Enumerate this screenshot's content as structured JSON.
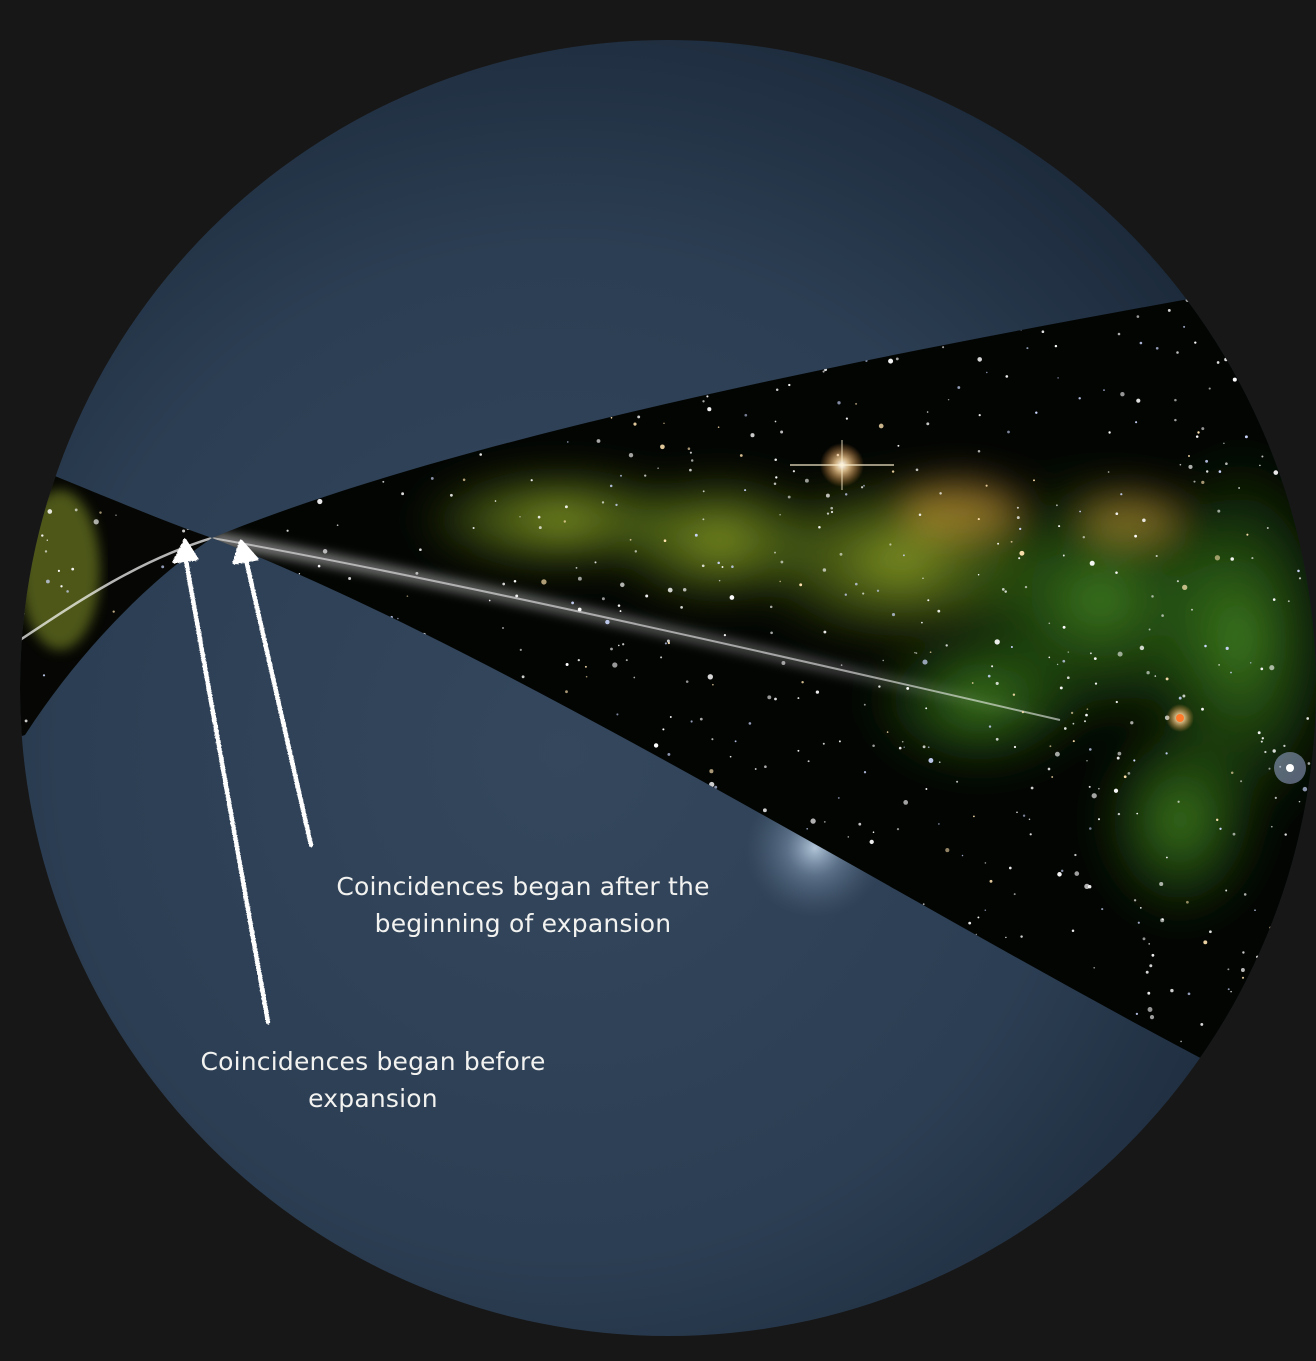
{
  "labels": {
    "after_line1": "Coincidences began after the",
    "after_line2": "beginning of expansion",
    "before_line1": "Coincidences began before",
    "before_line2": "expansion"
  },
  "colors": {
    "background": "#171717",
    "sphere_light": "#34475d",
    "sphere_dark": "#1c2a3b",
    "space": "#030503",
    "nebula_green": "#6f8e1e",
    "nebula_yellow": "#c8c84a",
    "arrow": "#ffffff",
    "text": "#f2f2f0"
  }
}
